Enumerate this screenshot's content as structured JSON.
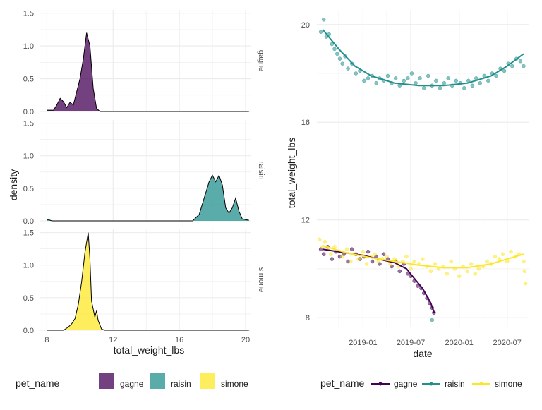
{
  "colors": {
    "gagne": "#440154",
    "raisin": "#21908C",
    "simone": "#FDE725",
    "grid": "#ebebeb",
    "text": "#4d4d4d",
    "title": "#1a1a1a"
  },
  "legend_left": {
    "title": "pet_name",
    "items": [
      "gagne",
      "raisin",
      "simone"
    ]
  },
  "legend_right": {
    "title": "pet_name",
    "items": [
      "gagne",
      "raisin",
      "simone"
    ]
  },
  "chart_data": [
    {
      "type": "area",
      "subtype": "faceted-density",
      "xlabel": "total_weight_lbs",
      "ylabel": "density",
      "xlim": [
        7.6,
        20.3
      ],
      "ylim": [
        0,
        1.55
      ],
      "x_ticks": [
        8,
        12,
        16,
        20
      ],
      "y_ticks": [
        0.0,
        0.5,
        1.0,
        1.5
      ],
      "x_tick_labels": [
        "8",
        "12",
        "16",
        "20"
      ],
      "y_tick_labels": [
        "0.0",
        "0.5",
        "1.0",
        "1.5"
      ],
      "grid": true,
      "legend_position": "bottom",
      "facets": [
        {
          "label": "gagne",
          "series": "gagne",
          "x": [
            8.0,
            8.4,
            8.6,
            8.8,
            9.0,
            9.2,
            9.4,
            9.6,
            9.8,
            10.0,
            10.2,
            10.4,
            10.6,
            10.8,
            11.0,
            11.2,
            11.5,
            20.2
          ],
          "y": [
            0.02,
            0.02,
            0.1,
            0.2,
            0.15,
            0.06,
            0.14,
            0.1,
            0.3,
            0.5,
            0.8,
            1.2,
            1.0,
            0.35,
            0.05,
            0.0,
            0.0,
            0.0
          ]
        },
        {
          "label": "raisin",
          "series": "raisin",
          "x": [
            8.0,
            8.1,
            8.3,
            16.8,
            17.2,
            17.5,
            17.8,
            18.0,
            18.2,
            18.4,
            18.6,
            18.8,
            19.0,
            19.2,
            19.4,
            19.6,
            19.8,
            20.0,
            20.2
          ],
          "y": [
            0.02,
            0.02,
            0.0,
            0.0,
            0.1,
            0.35,
            0.6,
            0.7,
            0.6,
            0.7,
            0.55,
            0.2,
            0.12,
            0.2,
            0.35,
            0.15,
            0.03,
            0.02,
            0.01
          ],
          "x_start": 17.0
        },
        {
          "label": "simone",
          "series": "simone",
          "x": [
            8.0,
            9.0,
            9.3,
            9.5,
            9.7,
            9.9,
            10.1,
            10.3,
            10.5,
            10.6,
            10.7,
            10.9,
            11.0,
            11.1,
            11.3,
            11.5,
            20.2
          ],
          "y": [
            0.0,
            0.0,
            0.05,
            0.1,
            0.18,
            0.4,
            0.75,
            1.2,
            1.5,
            1.1,
            0.45,
            0.2,
            0.3,
            0.15,
            0.02,
            0.0,
            0.0
          ]
        }
      ]
    },
    {
      "type": "scatter",
      "subtype": "scatter-with-smooth",
      "xlabel": "date",
      "ylabel": "total_weight_lbs",
      "xlim": [
        "2018-07-10",
        "2020-09-20"
      ],
      "ylim": [
        7.6,
        20.6
      ],
      "x_ticks": [
        "2019-01-01",
        "2019-07-01",
        "2020-01-01",
        "2020-07-01"
      ],
      "x_tick_labels": [
        "2019-01",
        "2019-07",
        "2020-01",
        "2020-07"
      ],
      "y_ticks": [
        8,
        12,
        16,
        20
      ],
      "y_tick_labels": [
        "8",
        "12",
        "16",
        "20"
      ],
      "grid": true,
      "legend_position": "bottom",
      "series": [
        {
          "name": "gagne",
          "smooth": {
            "x": [
              "2018-08-01",
              "2018-10-01",
              "2019-01-01",
              "2019-03-01",
              "2019-05-01",
              "2019-06-15",
              "2019-07-15",
              "2019-08-15",
              "2019-09-15",
              "2019-09-28"
            ],
            "y": [
              10.8,
              10.7,
              10.55,
              10.4,
              10.25,
              10.0,
              9.6,
              9.2,
              8.6,
              8.2
            ]
          },
          "points": {
            "x": [
              "2018-07-25",
              "2018-08-05",
              "2018-08-20",
              "2018-09-05",
              "2018-09-20",
              "2018-10-05",
              "2018-10-20",
              "2018-11-05",
              "2018-11-20",
              "2018-12-05",
              "2018-12-20",
              "2019-01-05",
              "2019-01-20",
              "2019-02-05",
              "2019-02-20",
              "2019-03-05",
              "2019-03-20",
              "2019-04-05",
              "2019-04-20",
              "2019-05-05",
              "2019-05-20",
              "2019-06-05",
              "2019-06-20",
              "2019-07-01",
              "2019-07-15",
              "2019-07-28",
              "2019-08-10",
              "2019-08-20",
              "2019-09-01",
              "2019-09-10",
              "2019-09-20",
              "2019-09-27"
            ],
            "y": [
              10.8,
              10.6,
              10.9,
              10.4,
              10.7,
              10.5,
              10.6,
              10.3,
              10.8,
              10.6,
              10.4,
              10.5,
              10.7,
              10.3,
              10.5,
              10.2,
              10.6,
              10.4,
              10.1,
              10.3,
              9.9,
              10.2,
              9.8,
              9.7,
              9.5,
              9.3,
              9.2,
              9.0,
              8.8,
              8.6,
              8.4,
              8.2
            ]
          }
        },
        {
          "name": "raisin",
          "smooth": {
            "x": [
              "2018-08-01",
              "2018-10-01",
              "2018-12-01",
              "2019-02-01",
              "2019-05-01",
              "2019-08-01",
              "2019-11-01",
              "2020-02-01",
              "2020-05-01",
              "2020-07-01",
              "2020-09-01"
            ],
            "y": [
              19.8,
              19.0,
              18.3,
              17.9,
              17.6,
              17.5,
              17.5,
              17.6,
              17.9,
              18.3,
              18.8
            ]
          },
          "points": {
            "x": [
              "2018-07-25",
              "2018-08-05",
              "2018-08-15",
              "2018-08-25",
              "2018-09-05",
              "2018-09-15",
              "2018-09-25",
              "2018-10-05",
              "2018-10-15",
              "2018-10-25",
              "2018-11-05",
              "2018-11-20",
              "2018-12-05",
              "2018-12-20",
              "2019-01-05",
              "2019-01-20",
              "2019-02-05",
              "2019-02-20",
              "2019-03-05",
              "2019-03-20",
              "2019-04-05",
              "2019-04-20",
              "2019-05-05",
              "2019-05-20",
              "2019-06-05",
              "2019-06-20",
              "2019-07-05",
              "2019-07-20",
              "2019-08-05",
              "2019-08-20",
              "2019-09-05",
              "2019-09-20",
              "2019-10-05",
              "2019-10-20",
              "2019-11-05",
              "2019-11-20",
              "2019-12-05",
              "2019-12-20",
              "2020-01-05",
              "2020-01-20",
              "2020-02-05",
              "2020-02-20",
              "2020-03-05",
              "2020-03-20",
              "2020-04-05",
              "2020-04-20",
              "2020-05-05",
              "2020-05-20",
              "2020-06-05",
              "2020-06-20",
              "2020-07-05",
              "2020-07-20",
              "2020-08-05",
              "2020-08-20",
              "2020-09-01",
              "2019-09-20"
            ],
            "y": [
              19.7,
              20.2,
              19.5,
              19.6,
              19.2,
              19.0,
              18.8,
              18.6,
              18.4,
              18.7,
              18.2,
              18.4,
              18.0,
              18.1,
              17.7,
              17.8,
              17.9,
              17.6,
              17.8,
              17.7,
              17.9,
              17.6,
              17.8,
              17.5,
              17.7,
              17.8,
              18.0,
              17.6,
              17.8,
              17.4,
              17.9,
              17.5,
              17.7,
              17.4,
              17.6,
              17.8,
              17.5,
              17.7,
              17.6,
              17.4,
              17.7,
              17.5,
              17.8,
              17.6,
              17.9,
              17.7,
              18.0,
              17.9,
              18.2,
              18.1,
              18.4,
              18.3,
              18.6,
              18.5,
              18.3,
              7.9
            ]
          }
        },
        {
          "name": "simone",
          "smooth": {
            "x": [
              "2018-08-01",
              "2018-11-01",
              "2019-02-01",
              "2019-05-01",
              "2019-08-01",
              "2019-11-01",
              "2020-02-01",
              "2020-05-01",
              "2020-07-01",
              "2020-09-01"
            ],
            "y": [
              10.95,
              10.65,
              10.45,
              10.3,
              10.15,
              10.05,
              10.05,
              10.2,
              10.4,
              10.6
            ]
          },
          "points": {
            "x": [
              "2018-07-20",
              "2018-08-01",
              "2018-08-10",
              "2018-08-20",
              "2018-09-01",
              "2018-09-15",
              "2018-10-01",
              "2018-10-15",
              "2018-11-01",
              "2018-11-15",
              "2018-12-01",
              "2018-12-15",
              "2019-01-01",
              "2019-01-15",
              "2019-02-01",
              "2019-02-15",
              "2019-03-01",
              "2019-03-15",
              "2019-04-01",
              "2019-04-15",
              "2019-05-01",
              "2019-05-15",
              "2019-06-01",
              "2019-06-15",
              "2019-07-01",
              "2019-07-15",
              "2019-08-01",
              "2019-08-15",
              "2019-09-01",
              "2019-09-15",
              "2019-10-01",
              "2019-10-15",
              "2019-11-01",
              "2019-11-15",
              "2019-12-01",
              "2019-12-15",
              "2020-01-01",
              "2020-01-15",
              "2020-02-01",
              "2020-02-15",
              "2020-03-01",
              "2020-03-15",
              "2020-04-01",
              "2020-04-15",
              "2020-05-01",
              "2020-05-15",
              "2020-06-01",
              "2020-06-15",
              "2020-07-01",
              "2020-07-15",
              "2020-08-01",
              "2020-08-15",
              "2020-09-01",
              "2020-09-05",
              "2020-09-08"
            ],
            "y": [
              11.2,
              10.9,
              11.1,
              10.8,
              10.6,
              10.9,
              10.7,
              10.5,
              10.8,
              10.3,
              10.6,
              10.4,
              10.7,
              10.2,
              10.5,
              10.6,
              10.3,
              10.4,
              10.5,
              10.2,
              10.4,
              10.1,
              10.3,
              10.5,
              10.0,
              10.3,
              10.2,
              10.4,
              10.1,
              9.9,
              10.2,
              10.0,
              10.1,
              9.8,
              10.3,
              10.0,
              9.7,
              10.1,
              9.9,
              10.2,
              9.8,
              10.0,
              10.1,
              10.3,
              10.2,
              10.5,
              10.4,
              10.6,
              10.3,
              10.7,
              10.5,
              10.6,
              10.3,
              9.9,
              9.4
            ]
          }
        }
      ]
    }
  ]
}
